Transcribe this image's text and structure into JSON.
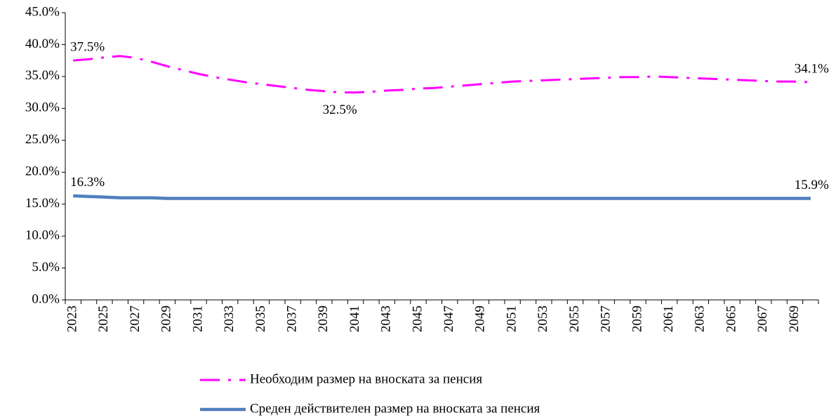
{
  "chart_data": {
    "type": "line",
    "categories": [
      "2023",
      null,
      "2025",
      null,
      "2027",
      null,
      "2029",
      null,
      "2031",
      null,
      "2033",
      null,
      "2035",
      null,
      "2037",
      null,
      "2039",
      null,
      "2041",
      null,
      "2043",
      null,
      "2045",
      null,
      "2047",
      null,
      "2049",
      null,
      "2051",
      null,
      "2053",
      null,
      "2055",
      null,
      "2057",
      null,
      "2059",
      null,
      "2061",
      null,
      "2063",
      null,
      "2065",
      null,
      "2067",
      null,
      "2069",
      null
    ],
    "series": [
      {
        "name": "Необходим размер на вноската за пенсия",
        "color": "#ff00ff",
        "dash": "dash-dot",
        "values": [
          37.5,
          37.7,
          38.0,
          38.2,
          37.9,
          37.3,
          36.6,
          36.0,
          35.4,
          34.9,
          34.5,
          34.1,
          33.8,
          33.5,
          33.2,
          32.9,
          32.7,
          32.5,
          32.5,
          32.6,
          32.8,
          32.9,
          33.1,
          33.2,
          33.4,
          33.6,
          33.8,
          34.0,
          34.2,
          34.3,
          34.4,
          34.5,
          34.6,
          34.7,
          34.8,
          34.9,
          34.9,
          35.0,
          34.9,
          34.8,
          34.7,
          34.6,
          34.5,
          34.4,
          34.3,
          34.2,
          34.2,
          34.1
        ],
        "value_labels": [
          "37.5%",
          null,
          null,
          null,
          null,
          null,
          null,
          null,
          null,
          null,
          null,
          null,
          null,
          null,
          null,
          null,
          null,
          "32.5%",
          null,
          null,
          null,
          null,
          null,
          null,
          null,
          null,
          null,
          null,
          null,
          null,
          null,
          null,
          null,
          null,
          null,
          null,
          null,
          null,
          null,
          null,
          null,
          null,
          null,
          null,
          null,
          null,
          null,
          "34.1%"
        ]
      },
      {
        "name": "Среден действителен размер на вноската за пенсия",
        "color": "#4f7fbe",
        "dash": "solid",
        "values": [
          16.3,
          16.2,
          16.1,
          16.0,
          16.0,
          16.0,
          15.9,
          15.9,
          15.9,
          15.9,
          15.9,
          15.9,
          15.9,
          15.9,
          15.9,
          15.9,
          15.9,
          15.9,
          15.9,
          15.9,
          15.9,
          15.9,
          15.9,
          15.9,
          15.9,
          15.9,
          15.9,
          15.9,
          15.9,
          15.9,
          15.9,
          15.9,
          15.9,
          15.9,
          15.9,
          15.9,
          15.9,
          15.9,
          15.9,
          15.9,
          15.9,
          15.9,
          15.9,
          15.9,
          15.9,
          15.9,
          15.9,
          15.9
        ],
        "value_labels": [
          "16.3%",
          null,
          null,
          null,
          null,
          null,
          null,
          null,
          null,
          null,
          null,
          null,
          null,
          null,
          null,
          null,
          null,
          null,
          null,
          null,
          null,
          null,
          null,
          null,
          null,
          null,
          null,
          null,
          null,
          null,
          null,
          null,
          null,
          null,
          null,
          null,
          null,
          null,
          null,
          null,
          null,
          null,
          null,
          null,
          null,
          null,
          null,
          "15.9%"
        ]
      }
    ],
    "ylim": [
      0,
      45
    ],
    "yticks": [
      {
        "value": 0,
        "label": "0.0%"
      },
      {
        "value": 5,
        "label": "5.0%"
      },
      {
        "value": 10,
        "label": "10.0%"
      },
      {
        "value": 15,
        "label": "15.0%"
      },
      {
        "value": 20,
        "label": "20.0%"
      },
      {
        "value": 25,
        "label": "25.0%"
      },
      {
        "value": 30,
        "label": "30.0%"
      },
      {
        "value": 35,
        "label": "35.0%"
      },
      {
        "value": 40,
        "label": "40.0%"
      },
      {
        "value": 45,
        "label": "45.0%"
      }
    ],
    "grid": false,
    "legend": "bottom"
  }
}
